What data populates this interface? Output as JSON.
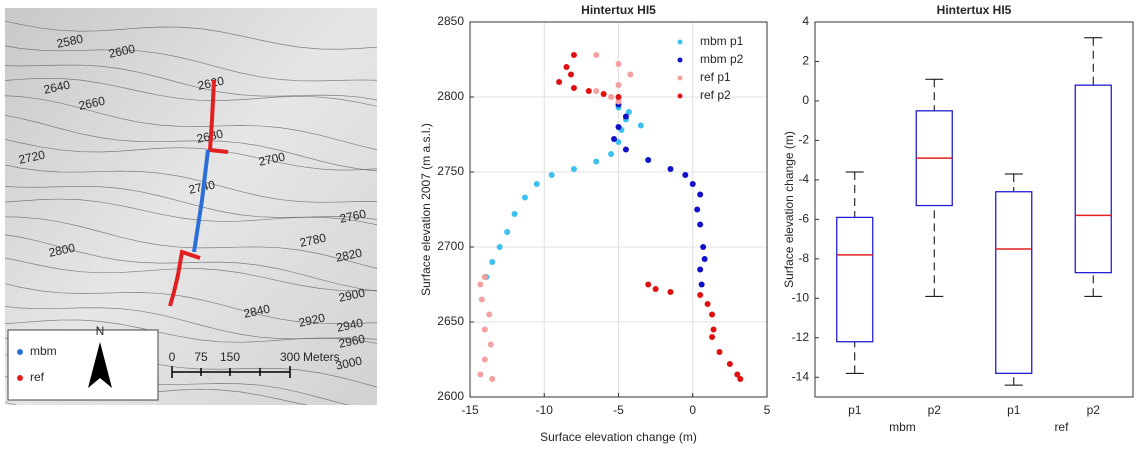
{
  "map": {
    "contour_labels": [
      "2580",
      "2600",
      "2620",
      "2640",
      "2660",
      "2680",
      "2700",
      "2720",
      "2740",
      "2760",
      "2780",
      "2800",
      "2820",
      "2840",
      "2900",
      "2920",
      "2940",
      "2960",
      "3000"
    ],
    "legend": [
      {
        "name": "mbm",
        "color": "#2a6fd8"
      },
      {
        "name": "ref",
        "color": "#e02020"
      }
    ],
    "north": "N",
    "scale": [
      "0",
      "75",
      "150",
      "300",
      "Meters"
    ]
  },
  "chart_data": [
    {
      "type": "scatter",
      "title": "Hintertux HI5",
      "xlabel": "Surface elevation change (m)",
      "ylabel": "Surface elevation 2007 (m a.s.l.)",
      "xlim": [
        -15,
        5
      ],
      "xticks": [
        -15,
        -10,
        -5,
        0,
        5
      ],
      "ylim": [
        2600,
        2850
      ],
      "yticks": [
        2600,
        2650,
        2700,
        2750,
        2800,
        2850
      ],
      "grid": true,
      "series": [
        {
          "name": "mbm p1",
          "color": "#3cc0ee",
          "x": [
            -13.9,
            -13.5,
            -13,
            -12.5,
            -12,
            -11.3,
            -10.5,
            -9.5,
            -8,
            -6.5,
            -5.5,
            -5,
            -4.8,
            -4.5,
            -3.5,
            -4.3,
            -5
          ],
          "y": [
            2680,
            2690,
            2700,
            2710,
            2722,
            2733,
            2742,
            2748,
            2752,
            2757,
            2762,
            2770,
            2778,
            2785,
            2781,
            2790,
            2793
          ]
        },
        {
          "name": "mbm p2",
          "color": "#1010c8",
          "x": [
            -5,
            -4.5,
            -5,
            -5.3,
            -4.5,
            -3,
            -1.5,
            -0.5,
            0,
            0.5,
            0.3,
            0.5,
            0.7,
            0.8,
            0.5,
            0.6
          ],
          "y": [
            2795,
            2787,
            2780,
            2772,
            2765,
            2758,
            2752,
            2748,
            2742,
            2735,
            2725,
            2715,
            2700,
            2692,
            2685,
            2675
          ]
        },
        {
          "name": "ref p1",
          "color": "#f4a0a0",
          "x": [
            -6.5,
            -5,
            -4.2,
            -5,
            -6.5,
            -5.5,
            -5,
            -13.5,
            -14.3,
            -14,
            -13.6,
            -14,
            -13.7,
            -14.2,
            -14.3,
            -14
          ],
          "y": [
            2828,
            2822,
            2815,
            2808,
            2804,
            2800,
            2797,
            2612,
            2615,
            2625,
            2635,
            2645,
            2655,
            2665,
            2675,
            2680
          ]
        },
        {
          "name": "ref p2",
          "color": "#e01010",
          "x": [
            -8,
            -8.5,
            -8.2,
            -9,
            -8,
            -7,
            -6,
            -5,
            -3,
            -2.5,
            -1.5,
            0.5,
            1,
            1.3,
            1.4,
            1.3,
            1.8,
            2.5,
            3,
            3.2
          ],
          "y": [
            2828,
            2820,
            2815,
            2810,
            2806,
            2804,
            2802,
            2800,
            2675,
            2672,
            2670,
            2668,
            2662,
            2655,
            2645,
            2640,
            2630,
            2622,
            2615,
            2612
          ]
        }
      ]
    },
    {
      "type": "box",
      "title": "Hintertux HI5",
      "ylabel": "Surface elevation change (m)",
      "categories": [
        "p1",
        "p2",
        "p1",
        "p2"
      ],
      "group_labels": [
        "mbm",
        "ref"
      ],
      "ylim": [
        -15,
        4
      ],
      "yticks": [
        -14,
        -12,
        -10,
        -8,
        -6,
        -4,
        -2,
        0,
        2,
        4
      ],
      "box_color": "#2020d0",
      "median_color": "#e02020",
      "boxes": [
        {
          "low": -13.8,
          "q1": -12.2,
          "median": -7.8,
          "q3": -5.9,
          "high": -3.6
        },
        {
          "low": -9.9,
          "q1": -5.3,
          "median": -2.9,
          "q3": -0.5,
          "high": 1.1
        },
        {
          "low": -14.4,
          "q1": -13.8,
          "median": -7.5,
          "q3": -4.6,
          "high": -3.7
        },
        {
          "low": -9.9,
          "q1": -8.7,
          "median": -5.8,
          "q3": 0.8,
          "high": 3.2
        }
      ]
    }
  ]
}
